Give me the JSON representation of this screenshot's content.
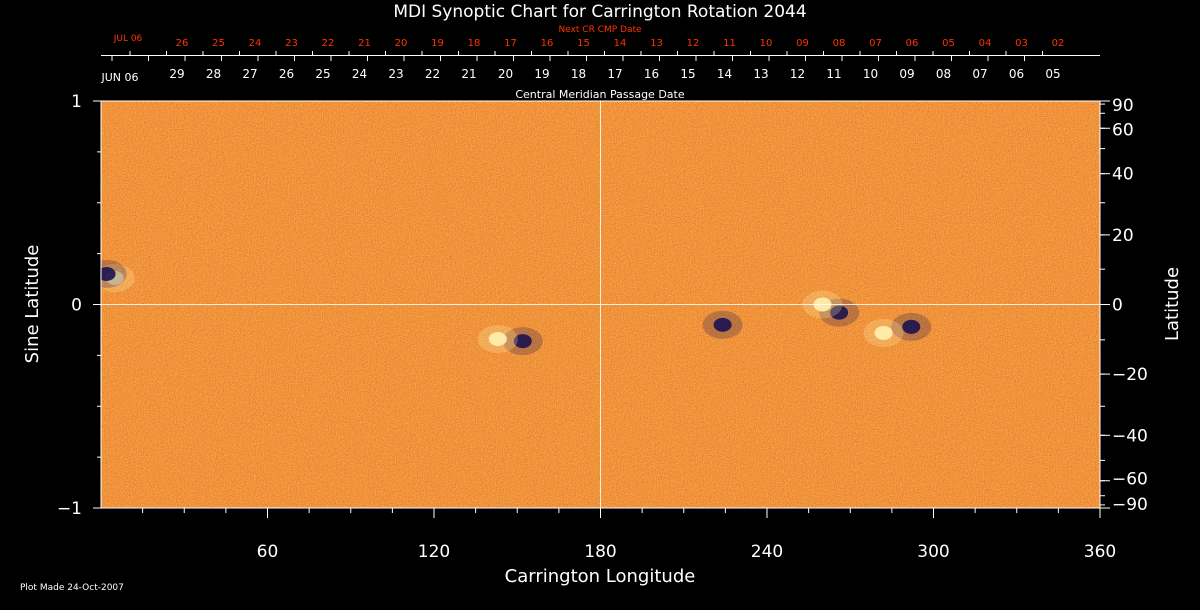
{
  "chart_data": {
    "type": "heatmap",
    "title": "MDI Synoptic Chart for Carrington Rotation 2044",
    "xlabel": "Carrington Longitude",
    "ylabel_left": "Sine Latitude",
    "ylabel_right": "Latitude",
    "xlim": [
      0,
      360
    ],
    "ylim": [
      -1,
      1
    ],
    "x_ticks": [
      60,
      120,
      180,
      240,
      300,
      360
    ],
    "y_ticks_left": [
      {
        "value": 1,
        "label": "1"
      },
      {
        "value": 0,
        "label": "0"
      },
      {
        "value": -1,
        "label": "−1"
      }
    ],
    "y_ticks_right": [
      "90",
      "60",
      "40",
      "20",
      "0",
      "−20",
      "−40",
      "−60",
      "−90"
    ],
    "y_ticks_right_deg": [
      90,
      60,
      40,
      20,
      0,
      -20,
      -40,
      -60,
      -90
    ],
    "top_axis": {
      "label": "Central Meridian Passage Date",
      "start_label": "JUN 06",
      "dates": [
        "29",
        "28",
        "27",
        "26",
        "25",
        "24",
        "23",
        "22",
        "21",
        "20",
        "19",
        "18",
        "17",
        "16",
        "15",
        "14",
        "13",
        "12",
        "11",
        "10",
        "09",
        "08",
        "07",
        "06",
        "05"
      ],
      "next_label": "Next CR CMP Date",
      "next_start_label": "JUL 06",
      "next_dates": [
        "26",
        "25",
        "24",
        "23",
        "22",
        "21",
        "20",
        "19",
        "18",
        "17",
        "16",
        "15",
        "14",
        "13",
        "12",
        "11",
        "10",
        "09",
        "08",
        "07",
        "06",
        "05",
        "04",
        "03",
        "02"
      ]
    },
    "active_regions": [
      {
        "lon": 5,
        "sinlat": 0.13,
        "polarity": "positive"
      },
      {
        "lon": 2,
        "sinlat": 0.15,
        "polarity": "negative"
      },
      {
        "lon": 152,
        "sinlat": -0.18,
        "polarity": "negative"
      },
      {
        "lon": 143,
        "sinlat": -0.17,
        "polarity": "positive"
      },
      {
        "lon": 266,
        "sinlat": -0.04,
        "polarity": "negative"
      },
      {
        "lon": 260,
        "sinlat": 0.0,
        "polarity": "positive"
      },
      {
        "lon": 292,
        "sinlat": -0.11,
        "polarity": "negative"
      },
      {
        "lon": 282,
        "sinlat": -0.14,
        "polarity": "positive"
      },
      {
        "lon": 224,
        "sinlat": -0.1,
        "polarity": "negative"
      }
    ],
    "colors": {
      "background": "#000000",
      "field": "#f25d1b",
      "positive": "#fff2b0",
      "negative": "#1a1450",
      "axes": "#ffffff",
      "date_labels": "#ff3300"
    }
  },
  "footer": {
    "plot_made": "Plot Made 24-Oct-2007"
  }
}
